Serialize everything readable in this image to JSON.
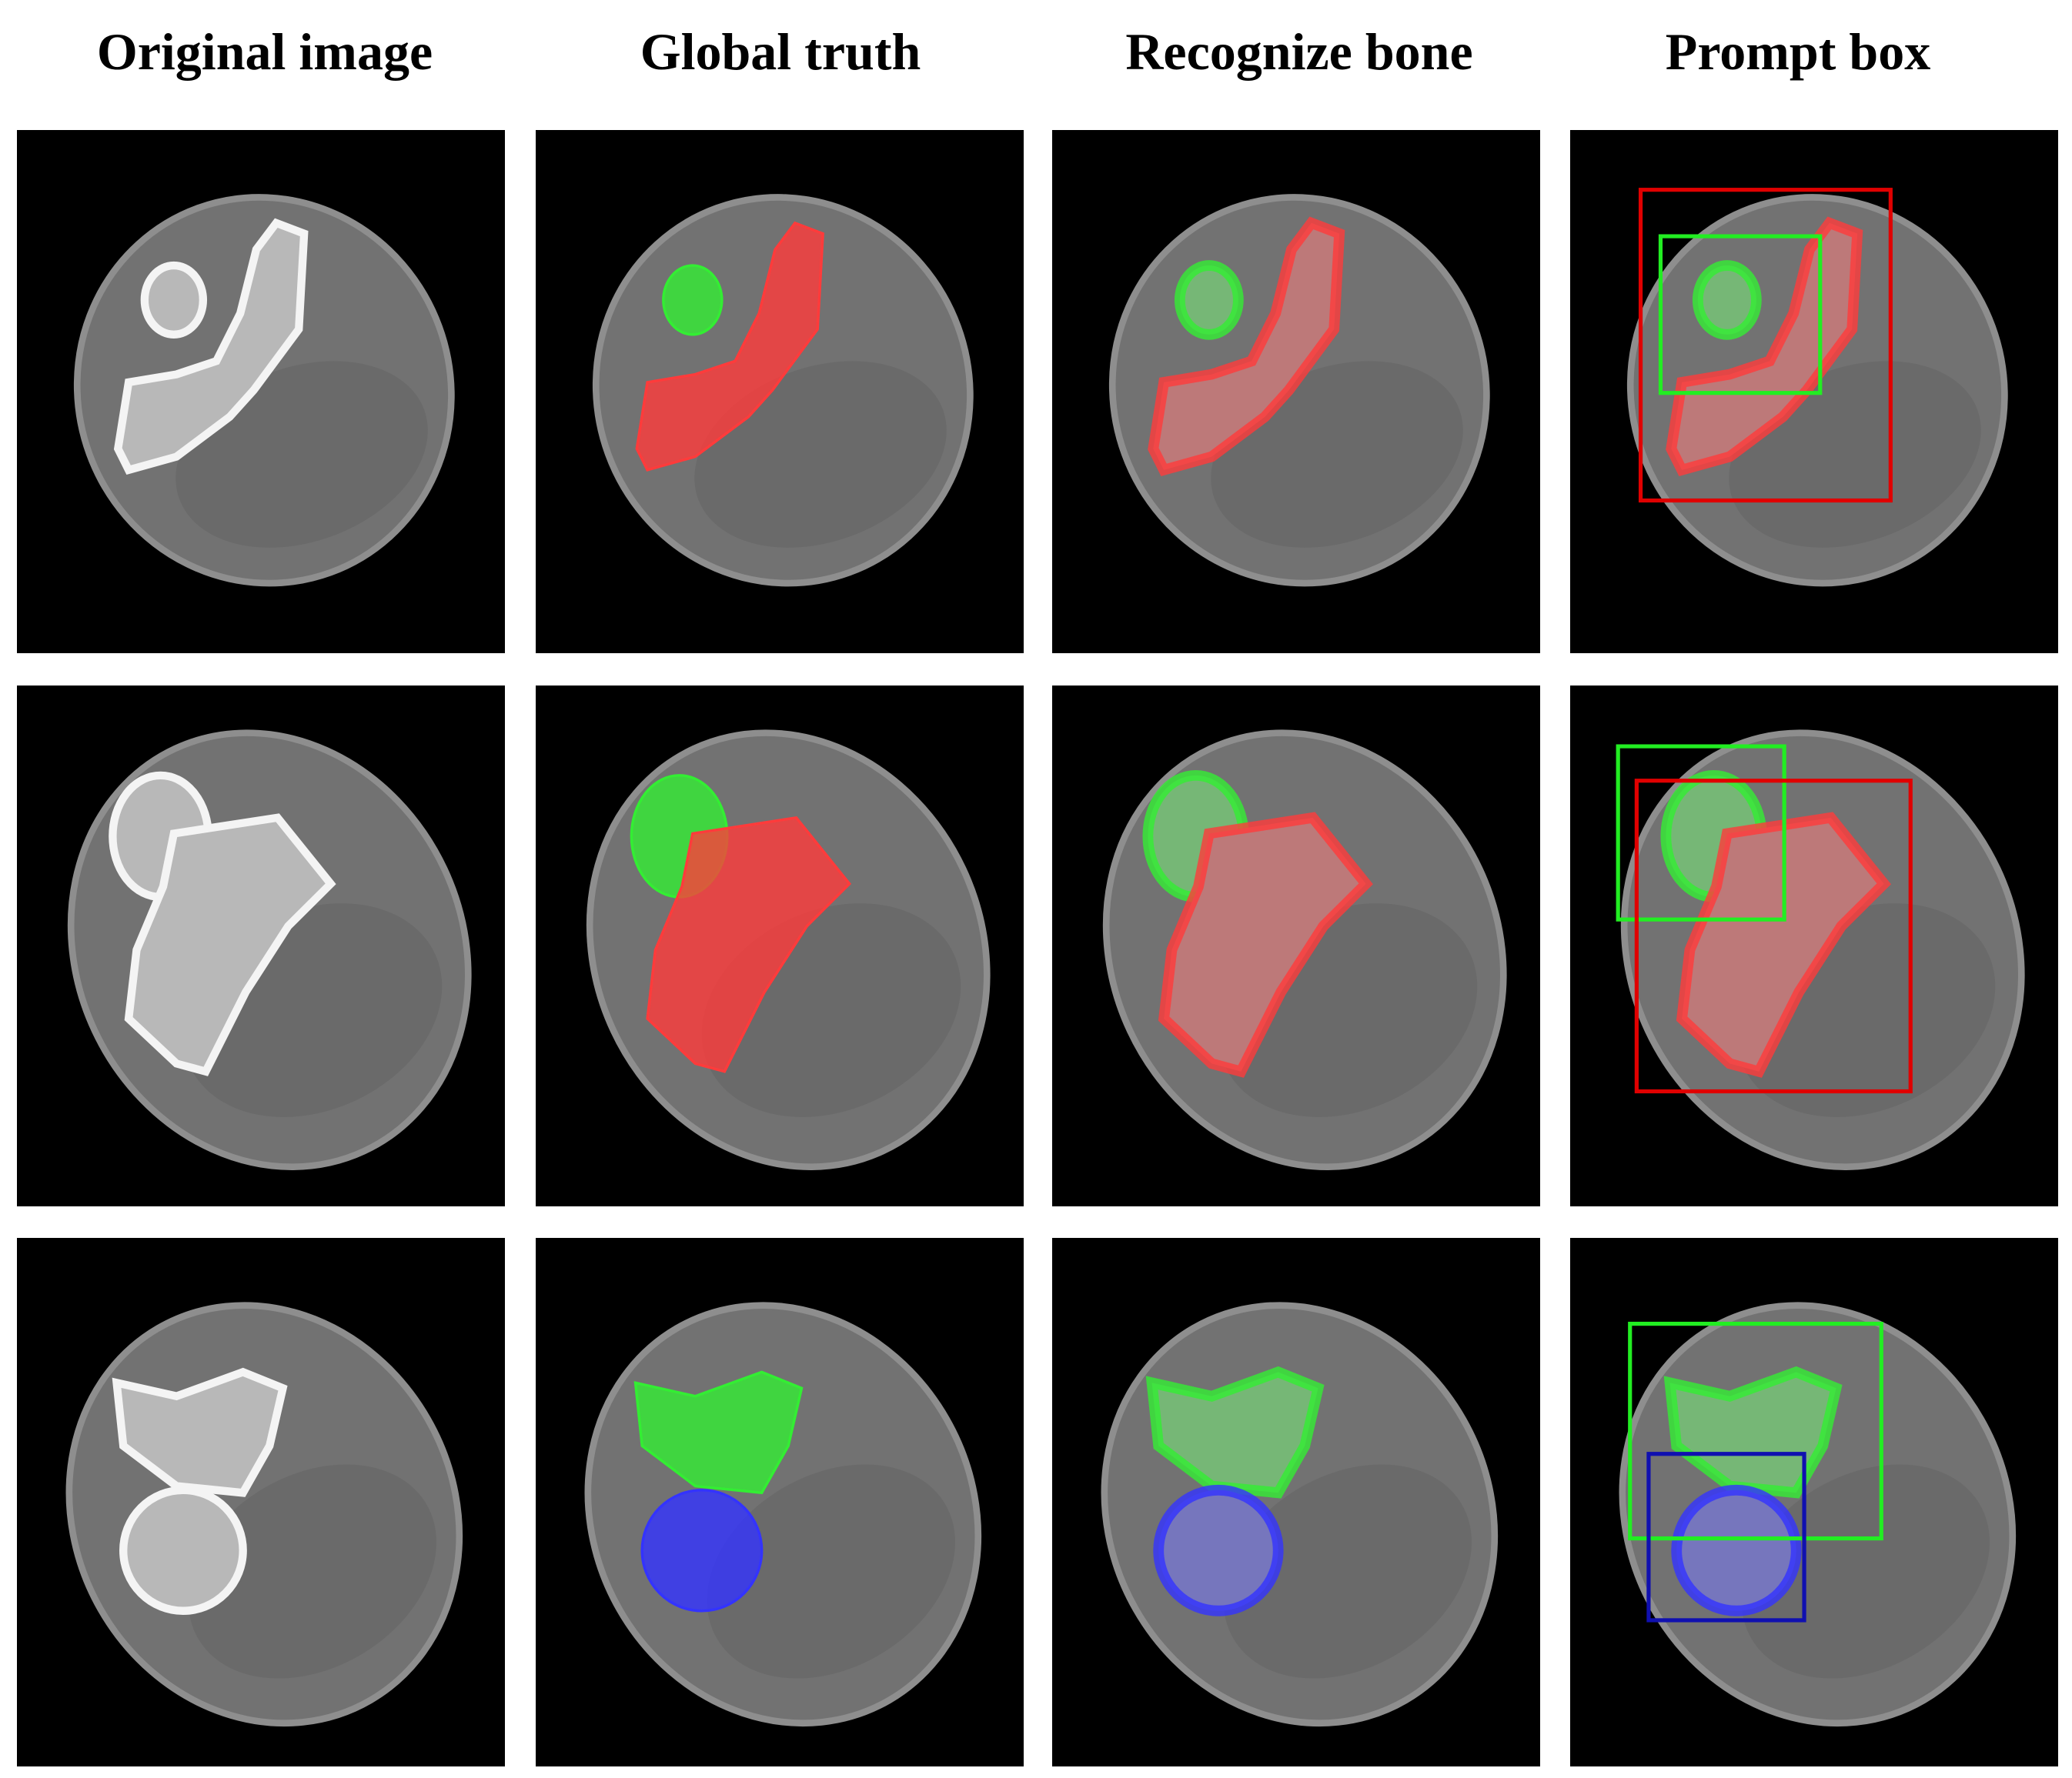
{
  "headers": [
    "Original image",
    "Global truth",
    "Recognize bone",
    "Prompt box"
  ]
}
